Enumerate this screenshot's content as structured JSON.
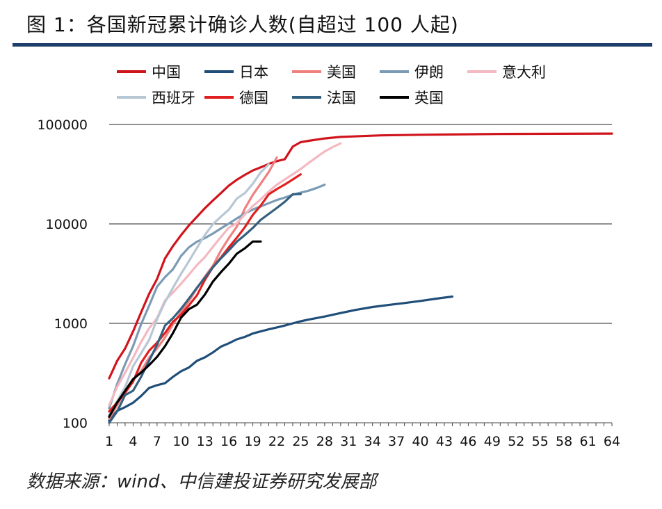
{
  "page": {
    "title": "图 1：各国新冠累计确诊人数(自超过 100 人起)",
    "source": "数据来源：wind、中信建投证券研究发展部"
  },
  "chart_data": {
    "type": "line",
    "title": "各国新冠累计确诊人数(自超过 100 人起)",
    "xlabel": "",
    "ylabel": "",
    "yscale": "log",
    "ylim": [
      100,
      100000
    ],
    "xlim": [
      1,
      64
    ],
    "xticks": [
      1,
      4,
      7,
      10,
      13,
      16,
      19,
      22,
      25,
      28,
      31,
      34,
      37,
      40,
      43,
      46,
      49,
      52,
      55,
      58,
      61,
      64
    ],
    "yticks": [
      100,
      1000,
      10000,
      100000
    ],
    "ytick_labels": [
      "100",
      "1000",
      "10000",
      "100000"
    ],
    "gridlines": [
      1000,
      10000,
      100000
    ],
    "series": [
      {
        "name": "中国",
        "color": "#d0141c",
        "width": 3.2,
        "x": [
          1,
          2,
          3,
          4,
          5,
          6,
          7,
          8,
          9,
          10,
          11,
          12,
          13,
          14,
          15,
          16,
          17,
          18,
          19,
          20,
          21,
          22,
          23,
          24,
          25,
          26,
          28,
          30,
          35,
          40,
          50,
          64
        ],
        "y": [
          280,
          420,
          560,
          830,
          1290,
          1980,
          2800,
          4500,
          5990,
          7710,
          9690,
          11790,
          14380,
          17200,
          20400,
          24300,
          27800,
          31100,
          34500,
          37100,
          40100,
          42700,
          44700,
          59800,
          66400,
          68500,
          72400,
          75000,
          77700,
          78800,
          80300,
          81000
        ]
      },
      {
        "name": "日本",
        "color": "#1f4e79",
        "width": 3.2,
        "x": [
          1,
          2,
          3,
          4,
          5,
          6,
          7,
          8,
          9,
          10,
          11,
          12,
          13,
          14,
          15,
          16,
          17,
          18,
          19,
          20,
          21,
          22,
          23,
          24,
          25,
          26,
          28,
          30,
          32,
          34,
          36,
          38,
          40,
          42,
          44
        ],
        "y": [
          105,
          132,
          144,
          159,
          186,
          224,
          239,
          250,
          290,
          330,
          360,
          420,
          455,
          510,
          583,
          630,
          690,
          730,
          790,
          830,
          870,
          910,
          950,
          1000,
          1050,
          1090,
          1170,
          1270,
          1370,
          1460,
          1530,
          1600,
          1680,
          1770,
          1860
        ]
      },
      {
        "name": "美国",
        "color": "#f08080",
        "width": 3.2,
        "x": [
          1,
          2,
          3,
          4,
          5,
          6,
          7,
          8,
          9,
          10,
          11,
          12,
          13,
          14,
          15,
          16,
          17,
          18,
          19,
          20,
          21,
          22
        ],
        "y": [
          110,
          150,
          210,
          270,
          330,
          450,
          560,
          720,
          980,
          1300,
          1680,
          2250,
          2950,
          3800,
          5400,
          7200,
          9400,
          14300,
          19600,
          25500,
          33300,
          46500
        ]
      },
      {
        "name": "伊朗",
        "color": "#7b9bb5",
        "width": 3.2,
        "x": [
          1,
          2,
          3,
          4,
          5,
          6,
          7,
          8,
          9,
          10,
          11,
          12,
          13,
          14,
          15,
          16,
          17,
          18,
          19,
          20,
          21,
          22,
          23,
          24,
          25,
          26,
          27,
          28
        ],
        "y": [
          140,
          245,
          390,
          590,
          980,
          1500,
          2340,
          2920,
          3500,
          4750,
          5820,
          6620,
          7200,
          8000,
          9000,
          10080,
          11360,
          12730,
          13940,
          14990,
          16170,
          17360,
          18400,
          19640,
          20600,
          21600,
          23000,
          24800
        ]
      },
      {
        "name": "意大利",
        "color": "#f4b8c0",
        "width": 3.2,
        "x": [
          1,
          2,
          3,
          4,
          5,
          6,
          7,
          8,
          9,
          10,
          11,
          12,
          13,
          14,
          15,
          16,
          17,
          18,
          19,
          20,
          21,
          22,
          23,
          24,
          25,
          26,
          27,
          28,
          29,
          30
        ],
        "y": [
          150,
          230,
          320,
          450,
          650,
          890,
          1130,
          1700,
          2040,
          2500,
          3090,
          3860,
          4640,
          5880,
          7380,
          9170,
          10150,
          12460,
          15110,
          17660,
          21160,
          24750,
          27980,
          31500,
          35710,
          41040,
          47020,
          53580,
          59140,
          64500
        ]
      },
      {
        "name": "西班牙",
        "color": "#b8c7d4",
        "width": 3.2,
        "x": [
          1,
          2,
          3,
          4,
          5,
          6,
          7,
          8,
          9,
          10,
          11,
          12,
          13,
          14,
          15,
          16,
          17,
          18,
          19,
          20,
          21
        ],
        "y": [
          120,
          165,
          230,
          370,
          500,
          680,
          1100,
          1640,
          2280,
          3140,
          4230,
          5750,
          7750,
          9940,
          11830,
          13910,
          17960,
          20410,
          25370,
          33090,
          39670
        ]
      },
      {
        "name": "德国",
        "color": "#e02020",
        "width": 3.2,
        "x": [
          1,
          2,
          3,
          4,
          5,
          6,
          7,
          8,
          9,
          10,
          11,
          12,
          13,
          14,
          15,
          16,
          17,
          18,
          19,
          20,
          21,
          22,
          23,
          24,
          25
        ],
        "y": [
          130,
          160,
          200,
          260,
          400,
          530,
          640,
          800,
          1040,
          1220,
          1520,
          1910,
          2740,
          3680,
          4590,
          5810,
          7270,
          9260,
          12330,
          15320,
          19850,
          22360,
          24870,
          28000,
          31500
        ]
      },
      {
        "name": "法国",
        "color": "#34607f",
        "width": 3.2,
        "x": [
          1,
          2,
          3,
          4,
          5,
          6,
          7,
          8,
          9,
          10,
          11,
          12,
          13,
          14,
          15,
          16,
          17,
          18,
          19,
          20,
          21,
          22,
          23,
          24,
          25
        ],
        "y": [
          100,
          130,
          190,
          210,
          290,
          420,
          610,
          950,
          1130,
          1400,
          1780,
          2280,
          2880,
          3660,
          4500,
          5420,
          6630,
          7730,
          9130,
          10990,
          12610,
          14460,
          16690,
          19860,
          20000
        ]
      },
      {
        "name": "英国",
        "color": "#000000",
        "width": 3.2,
        "x": [
          1,
          2,
          3,
          4,
          5,
          6,
          7,
          8,
          9,
          10,
          11,
          12,
          13,
          14,
          15,
          16,
          17,
          18,
          19,
          20
        ],
        "y": [
          115,
          160,
          210,
          275,
          320,
          380,
          460,
          590,
          800,
          1140,
          1390,
          1540,
          1950,
          2630,
          3270,
          3980,
          5020,
          5680,
          6650,
          6650
        ]
      }
    ]
  }
}
